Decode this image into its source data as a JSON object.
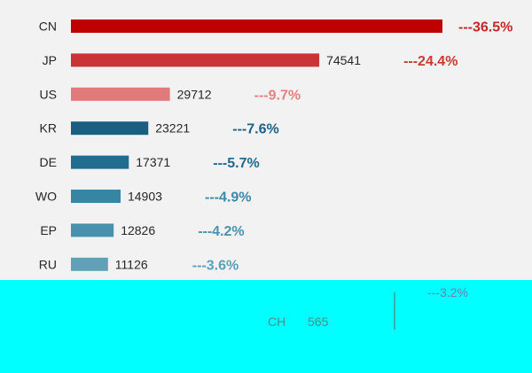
{
  "chart_data": {
    "type": "bar",
    "orientation": "horizontal",
    "categories": [
      "CN",
      "JP",
      "US",
      "KR",
      "DE",
      "WO",
      "EP",
      "RU"
    ],
    "values": [
      111520,
      74541,
      29712,
      23221,
      17371,
      14903,
      12826,
      11126
    ],
    "value_labels": [
      "",
      "74541",
      "29712",
      "23221",
      "17371",
      "14903",
      "12826",
      "11126"
    ],
    "shares": [
      "---36.5%",
      "---24.4%",
      "---9.7%",
      "---7.6%",
      "---5.7%",
      "---4.9%",
      "---4.2%",
      "---3.6%"
    ],
    "bar_colors": [
      "#c00000",
      "#c93436",
      "#e07b7a",
      "#1a5f82",
      "#206d8f",
      "#3585a3",
      "#4a91ae",
      "#62a0b8"
    ],
    "share_colors": [
      "#c0282a",
      "#c83a32",
      "#e48080",
      "#1d5f86",
      "#23698d",
      "#3a89a8",
      "#4a92b0",
      "#5c9ebb"
    ],
    "xlim": [
      0,
      111520
    ],
    "grid": false,
    "legend": "none",
    "partial_rows": [
      {
        "category": "CH",
        "value_label": "565"
      }
    ],
    "partial_share": "---3.2%"
  }
}
